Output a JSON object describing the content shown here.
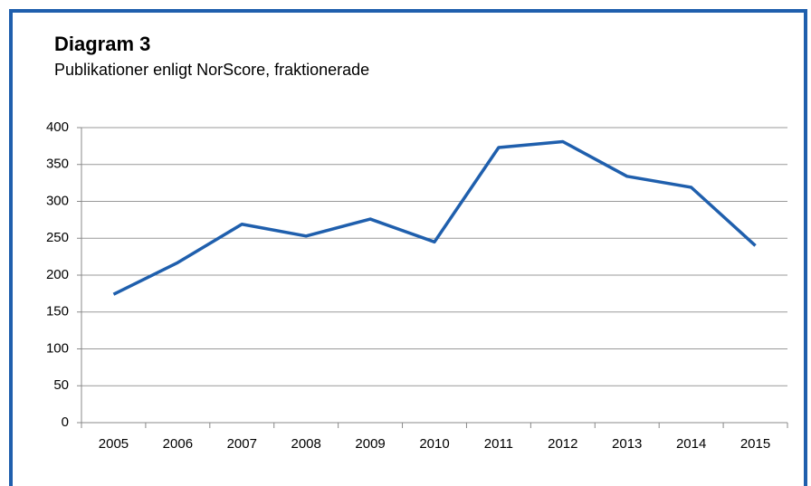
{
  "chart_data": {
    "type": "line",
    "title": "Diagram 3",
    "subtitle": "Publikationer enligt NorScore, fraktionerade",
    "categories": [
      "2005",
      "2006",
      "2007",
      "2008",
      "2009",
      "2010",
      "2011",
      "2012",
      "2013",
      "2014",
      "2015"
    ],
    "series": [
      {
        "name": "Publikationer",
        "color": "#1f5fad",
        "values": [
          174,
          217,
          269,
          253,
          276,
          245,
          373,
          381,
          334,
          319,
          240
        ]
      }
    ],
    "ylim": [
      0,
      400
    ],
    "yticks": [
      0,
      50,
      100,
      150,
      200,
      250,
      300,
      350,
      400
    ],
    "grid": true
  }
}
